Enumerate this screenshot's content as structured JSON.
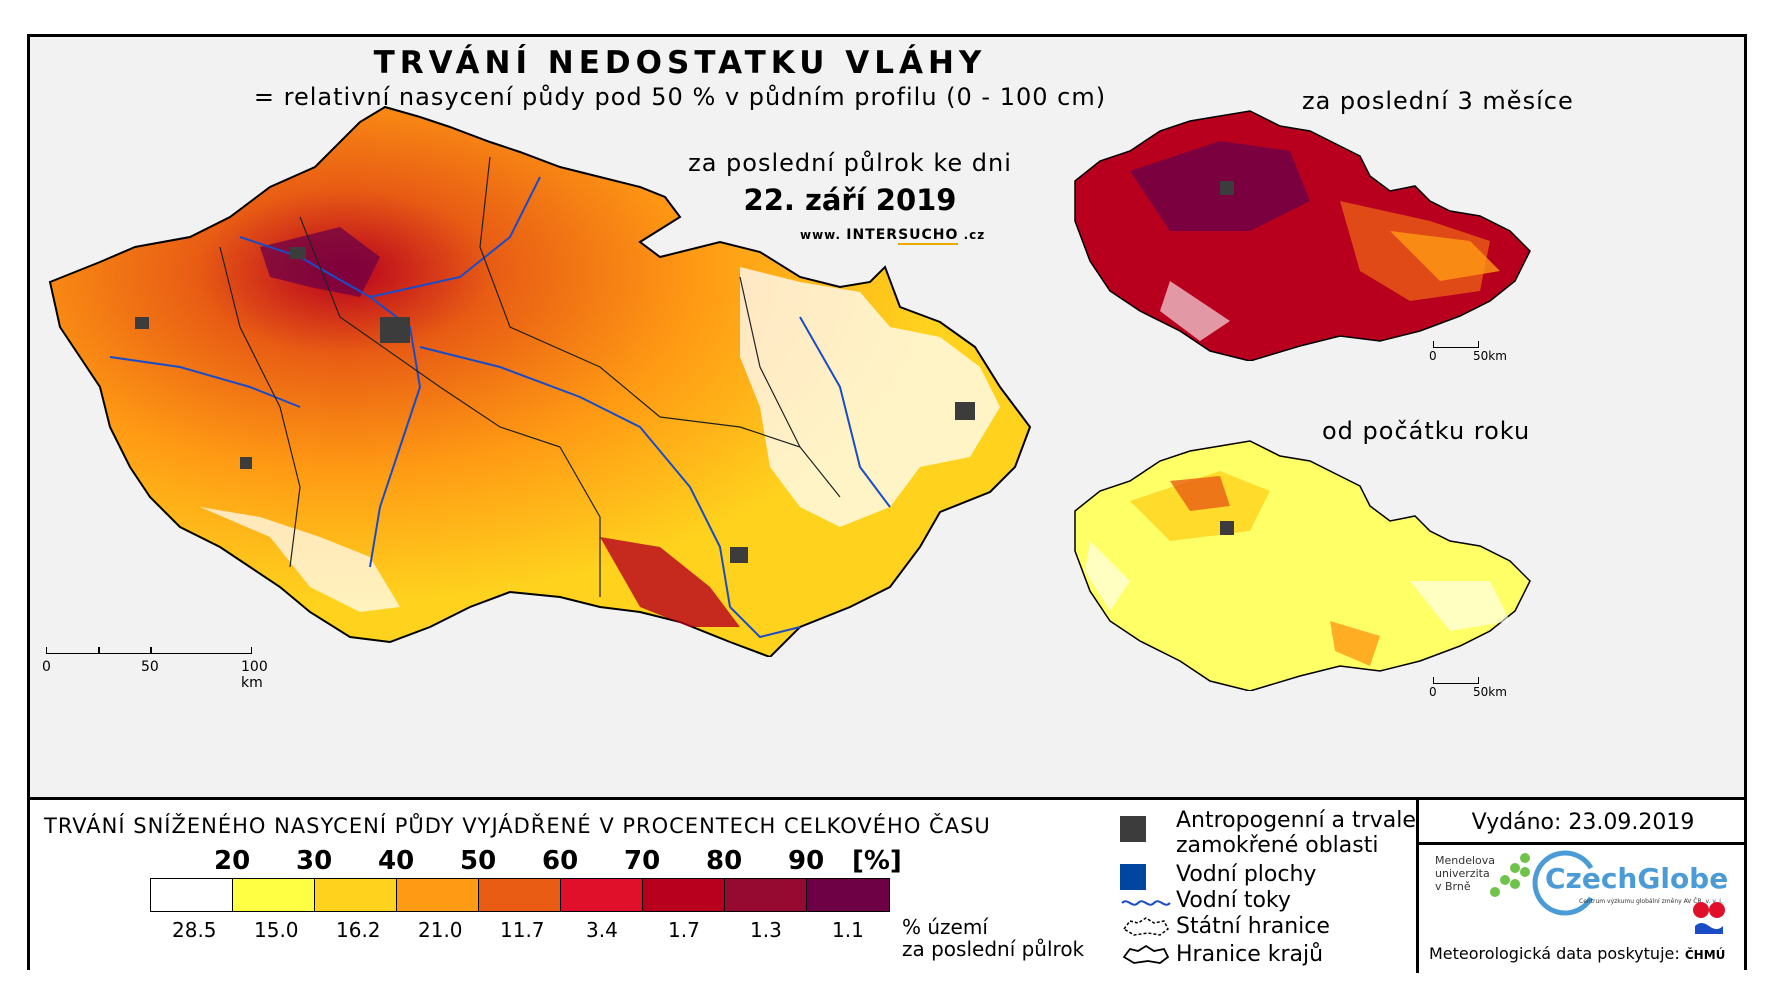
{
  "title": "TRVÁNÍ NEDOSTATKU VLÁHY",
  "subtitle": "= relativní nasycení půdy pod 50 % v půdním profilu (0 - 100 cm)",
  "period": "za poslední půlrok ke dni",
  "date": "22. září 2019",
  "website": {
    "prefix": "www.",
    "brand_a": "INTER",
    "brand_b": "SUCHO",
    "suffix": ".cz"
  },
  "insets": {
    "three_months": "za poslední 3 měsíce",
    "year_start": "od počátku roku"
  },
  "scale_main": {
    "labels": [
      "0",
      "50",
      "100 km"
    ]
  },
  "scale_inset": {
    "labels": [
      "0",
      "50km"
    ]
  },
  "legend": {
    "title": "TRVÁNÍ SNÍŽENÉHO NASYCENÍ PŮDY VYJÁDŘENÉ V PROCENTECH CELKOVÉHO ČASU",
    "thresholds": [
      "20",
      "30",
      "40",
      "50",
      "60",
      "70",
      "80",
      "90",
      "[%]"
    ],
    "colors": [
      "#ffffff",
      "#ffff44",
      "#ffd21e",
      "#ff9a14",
      "#e85c14",
      "#e0102a",
      "#b8001e",
      "#960a32",
      "#6e0046"
    ],
    "percent_values": [
      "28.5",
      "15.0",
      "16.2",
      "21.0",
      "11.7",
      "3.4",
      "1.7",
      "1.3",
      "1.1"
    ],
    "unit_line1": "% území",
    "unit_line2": "za poslední půlrok"
  },
  "symbols": {
    "anthropogenic_line1": "Antropogenní a trvale",
    "anthropogenic_line2": "zamokřené oblasti",
    "water_bodies": "Vodní plochy",
    "rivers": "Vodní toky",
    "state_border": "Státní hranice",
    "region_border": "Hranice krajů",
    "colors": {
      "anthropogenic": "#3c3c3c",
      "water_bodies": "#0046a0",
      "rivers": "#1a4cc8"
    }
  },
  "issued": "Vydáno: 23.09.2019",
  "mendel": [
    "Mendelova",
    "univerzita",
    "v Brně"
  ],
  "czechglobe": "CzechGlobe",
  "czechglobe_sub": "Centrum výzkumu globální změny AV ČR, v. v. i.",
  "meteo_credit": "Meteorologická data poskytuje:",
  "chmu": "ČHMÚ"
}
